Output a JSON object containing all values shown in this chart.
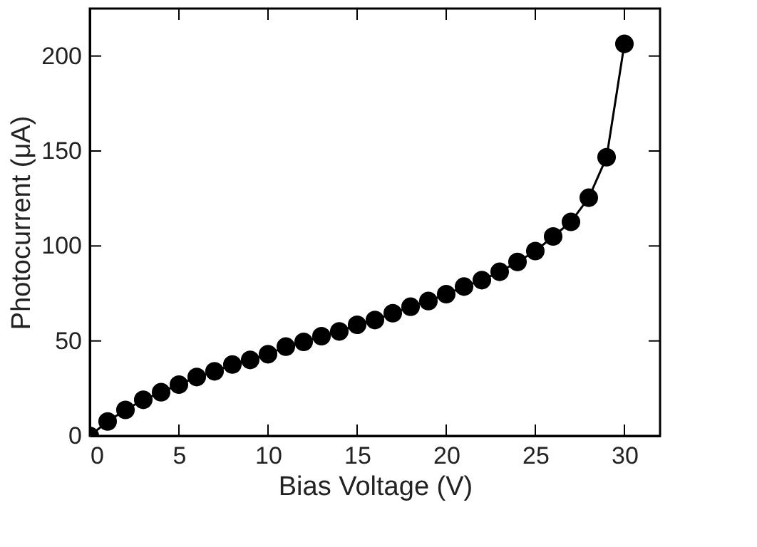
{
  "chart_data": {
    "type": "line",
    "xlabel": "Bias Voltage (V)",
    "ylabel": "Photocurrent (μA)",
    "x": [
      0,
      1,
      2,
      3,
      4,
      5,
      6,
      7,
      8,
      9,
      10,
      11,
      12,
      13,
      14,
      15,
      16,
      17,
      18,
      19,
      20,
      21,
      22,
      23,
      24,
      25,
      26,
      27,
      28,
      29,
      30
    ],
    "series": [
      {
        "color": "#000000",
        "values": [
          0,
          7.6,
          13.7,
          19,
          23,
          27,
          31,
          34,
          37.6,
          40,
          43,
          47,
          49.5,
          52.5,
          55,
          58.5,
          61,
          64.6,
          68,
          71,
          74.6,
          78.6,
          82,
          86.4,
          91.6,
          97.3,
          105,
          112.7,
          125.4,
          146.7,
          206.4
        ]
      }
    ],
    "xlim": [
      0,
      32
    ],
    "ylim": [
      0,
      225
    ],
    "xticks": [
      0,
      5,
      10,
      15,
      20,
      25,
      30
    ],
    "yticks": [
      0,
      50,
      100,
      150,
      200
    ],
    "grid": false,
    "marker": "circle",
    "line_style": "solid"
  }
}
